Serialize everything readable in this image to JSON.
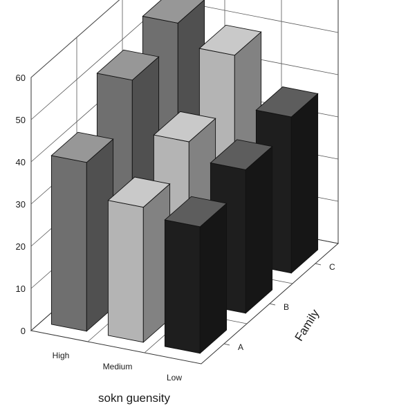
{
  "chart_data": {
    "type": "bar",
    "subtype": "3d-bar",
    "title": "",
    "x_categories": [
      "High",
      "Medium",
      "Low"
    ],
    "depth_categories": [
      "A",
      "B",
      "C"
    ],
    "xlabel": "sokn guensity",
    "zlabel": "Family",
    "ylabel": "",
    "y_ticks": [
      "0",
      "10",
      "20",
      "30",
      "40",
      "50",
      "60"
    ],
    "ylim": [
      0,
      60
    ],
    "grid": true,
    "series": [
      {
        "x": "High",
        "color": "#6f6f6f",
        "values": {
          "A": 40,
          "B": 50,
          "C": 54
        }
      },
      {
        "x": "Medium",
        "color": "#b4b4b4",
        "values": {
          "A": 32,
          "B": 38,
          "C": 49
        }
      },
      {
        "x": "Low",
        "color": "#1e1e1e",
        "values": {
          "A": 30,
          "B": 34,
          "C": 37
        }
      }
    ]
  }
}
